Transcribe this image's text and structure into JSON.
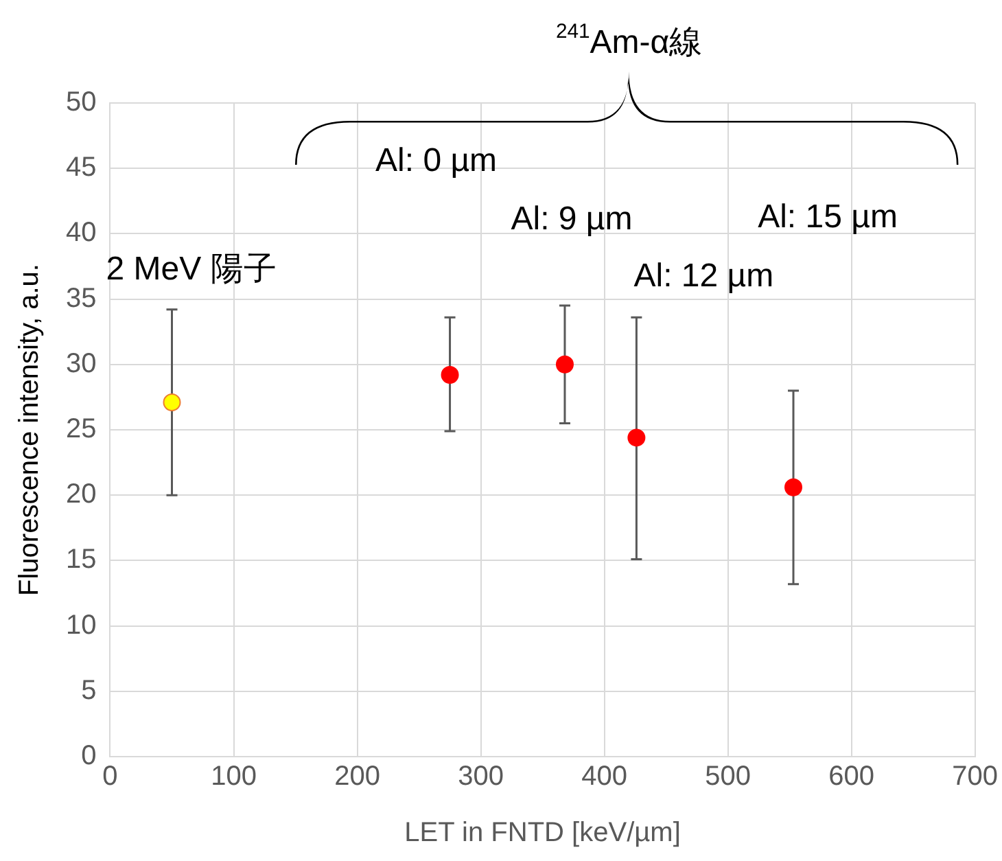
{
  "chart_data": {
    "type": "scatter",
    "xlabel": "LET in FNTD [keV/µm]",
    "ylabel": "Fluorescence intensity, a.u.",
    "xlim": [
      0,
      700
    ],
    "xticks": [
      0,
      100,
      200,
      300,
      400,
      500,
      600,
      700
    ],
    "ylim": [
      0,
      50
    ],
    "yticks": [
      0,
      5,
      10,
      15,
      20,
      25,
      30,
      35,
      40,
      45,
      50
    ],
    "grid": true,
    "legend": false,
    "marker": "circle",
    "series": [
      {
        "color": "#ffff00",
        "x": [
          50
        ],
        "values": [
          27.1
        ],
        "errors": [
          [
            20.0,
            34.2
          ]
        ]
      },
      {
        "color": "#ff0000",
        "x": [
          275,
          368,
          426,
          553
        ],
        "values": [
          29.2,
          30.0,
          24.4,
          20.6
        ],
        "errors": [
          [
            24.9,
            33.6
          ],
          [
            25.5,
            34.5
          ],
          [
            15.1,
            33.6
          ],
          [
            13.2,
            28.0
          ]
        ]
      }
    ],
    "annotations": [
      "$^{241}$Am-α線",
      "2 MeV 陽子",
      "Al: 0 µm",
      "Al: 9 µm",
      "Al: 12 µm",
      "Al: 15 µm"
    ]
  }
}
